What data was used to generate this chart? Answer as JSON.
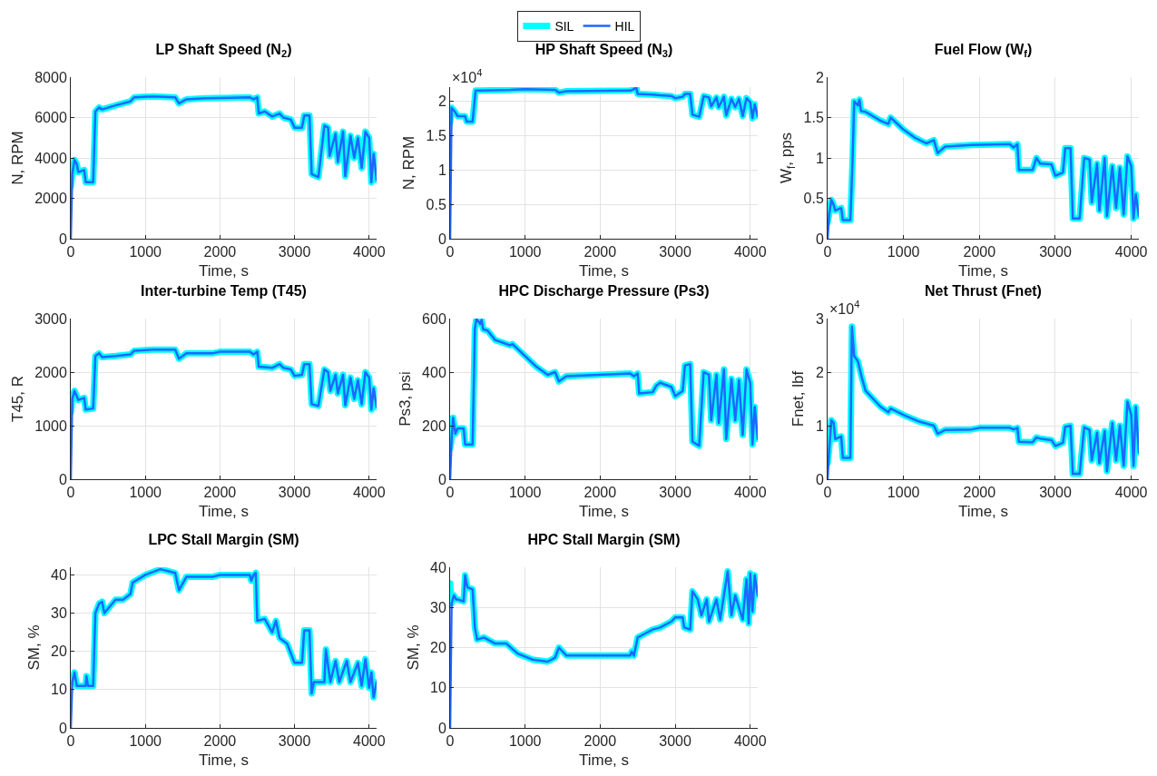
{
  "chart_data": [
    {
      "type": "line",
      "title": "LP Shaft Speed (N$_{2}$)",
      "xlabel": "Time, s",
      "ylabel": "N, RPM",
      "xlim": [
        0,
        4100
      ],
      "xticks": [
        0,
        1000,
        2000,
        3000,
        4000
      ],
      "ylim": [
        0,
        8000
      ],
      "yticks": [
        0,
        2000,
        4000,
        6000,
        8000
      ],
      "grid": true,
      "x": [
        0,
        20,
        50,
        80,
        100,
        180,
        200,
        300,
        330,
        380,
        420,
        600,
        800,
        850,
        1100,
        1400,
        1450,
        1550,
        1800,
        2400,
        2450,
        2500,
        2520,
        2600,
        2700,
        2800,
        2850,
        2950,
        3000,
        3100,
        3130,
        3200,
        3230,
        3320,
        3400,
        3450,
        3470,
        3550,
        3580,
        3650,
        3680,
        3750,
        3800,
        3850,
        3900,
        3950,
        4000,
        4030,
        4060,
        4080,
        4100
      ],
      "series": [
        {
          "color": "#00ffff",
          "values": [
            2600,
            3200,
            3900,
            3700,
            3300,
            3400,
            2800,
            2800,
            6300,
            6500,
            6400,
            6600,
            6800,
            7000,
            7050,
            7000,
            6700,
            6900,
            6950,
            7000,
            6900,
            7000,
            6200,
            6300,
            6050,
            6200,
            6000,
            5900,
            5500,
            5500,
            6100,
            6100,
            3200,
            3050,
            5600,
            5500,
            4100,
            5200,
            3800,
            5300,
            3100,
            5100,
            4000,
            5000,
            3500,
            5300,
            5000,
            2800,
            4200,
            3600,
            2900
          ]
        },
        {
          "color": "#1f66ff",
          "values": [
            0,
            3200,
            3900,
            3700,
            3300,
            3400,
            2800,
            2800,
            6300,
            6500,
            6400,
            6600,
            6800,
            7000,
            7050,
            7000,
            6700,
            6900,
            6950,
            7000,
            6900,
            7000,
            6200,
            6300,
            6050,
            6200,
            6000,
            5900,
            5500,
            5500,
            6100,
            6100,
            3200,
            3050,
            5600,
            5500,
            4100,
            5200,
            3800,
            5300,
            3100,
            5100,
            4000,
            5000,
            3500,
            5300,
            5000,
            2800,
            4200,
            3600,
            2900
          ]
        }
      ]
    },
    {
      "type": "line",
      "title": "HP Shaft Speed (N$_{3}$)",
      "xlabel": "Time, s",
      "ylabel": "N, RPM",
      "xlim": [
        0,
        4100
      ],
      "xticks": [
        0,
        1000,
        2000,
        3000,
        4000
      ],
      "ylim": [
        0,
        2.2
      ],
      "yticks": [
        0,
        0.5,
        1,
        1.5,
        2
      ],
      "grid": true,
      "annotations": [
        "×10$^{4}$"
      ],
      "legend": "top",
      "x": [
        0,
        20,
        60,
        100,
        200,
        220,
        300,
        340,
        400,
        800,
        1000,
        1400,
        1450,
        1550,
        2400,
        2450,
        2480,
        2500,
        2700,
        2800,
        2950,
        3000,
        3100,
        3130,
        3200,
        3230,
        3320,
        3380,
        3450,
        3480,
        3550,
        3580,
        3650,
        3680,
        3750,
        3800,
        3850,
        3900,
        3950,
        4000,
        4030,
        4060,
        4100
      ],
      "series": [
        {
          "name": "SIL",
          "color": "#00ffff",
          "values": [
            1.68,
            1.9,
            1.85,
            1.78,
            1.78,
            1.7,
            1.7,
            2.15,
            2.15,
            2.16,
            2.17,
            2.16,
            2.12,
            2.14,
            2.15,
            2.17,
            2.2,
            2.1,
            2.09,
            2.08,
            2.07,
            2.04,
            2.06,
            2.1,
            2.1,
            1.8,
            1.77,
            2.07,
            2.05,
            1.92,
            2.05,
            1.91,
            2.06,
            1.79,
            2.03,
            1.91,
            2.03,
            1.78,
            2.04,
            1.98,
            1.75,
            1.95,
            1.78
          ]
        },
        {
          "name": "HIL",
          "color": "#1f66ff",
          "values": [
            0,
            1.9,
            1.85,
            1.78,
            1.78,
            1.7,
            1.7,
            2.15,
            2.15,
            2.16,
            2.17,
            2.16,
            2.12,
            2.14,
            2.15,
            2.17,
            2.2,
            2.1,
            2.09,
            2.08,
            2.07,
            2.04,
            2.06,
            2.1,
            2.1,
            1.8,
            1.77,
            2.07,
            2.05,
            1.92,
            2.05,
            1.91,
            2.06,
            1.79,
            2.03,
            1.91,
            2.03,
            1.78,
            2.04,
            1.98,
            1.75,
            1.95,
            1.78
          ]
        }
      ]
    },
    {
      "type": "line",
      "title": "Fuel Flow (W$_{f}$)",
      "xlabel": "Time, s",
      "ylabel": "W$_{f}$, pps",
      "xlim": [
        0,
        4100
      ],
      "xticks": [
        0,
        1000,
        2000,
        3000,
        4000
      ],
      "ylim": [
        0,
        2
      ],
      "yticks": [
        0,
        0.5,
        1,
        1.5,
        2
      ],
      "grid": true,
      "x": [
        0,
        20,
        50,
        80,
        100,
        180,
        200,
        300,
        330,
        350,
        400,
        420,
        440,
        500,
        700,
        800,
        830,
        1000,
        1150,
        1300,
        1400,
        1450,
        1550,
        1900,
        2400,
        2450,
        2500,
        2520,
        2700,
        2750,
        2800,
        2950,
        3000,
        3100,
        3130,
        3200,
        3230,
        3320,
        3380,
        3450,
        3480,
        3550,
        3580,
        3650,
        3680,
        3750,
        3800,
        3850,
        3900,
        3950,
        4000,
        4030,
        4060,
        4100
      ],
      "series": [
        {
          "color": "#00ffff",
          "values": [
            0.2,
            0.3,
            0.48,
            0.42,
            0.35,
            0.38,
            0.23,
            0.23,
            1.0,
            1.7,
            1.65,
            1.72,
            1.58,
            1.57,
            1.46,
            1.42,
            1.5,
            1.35,
            1.25,
            1.18,
            1.22,
            1.06,
            1.14,
            1.16,
            1.17,
            1.13,
            1.17,
            0.85,
            0.85,
            1.0,
            0.93,
            0.92,
            0.78,
            0.82,
            1.12,
            1.12,
            0.25,
            0.25,
            1.0,
            0.98,
            0.45,
            0.93,
            0.35,
            1.0,
            0.28,
            0.9,
            0.38,
            0.88,
            0.3,
            1.02,
            0.9,
            0.25,
            0.55,
            0.28
          ]
        },
        {
          "color": "#1f66ff",
          "values": [
            0,
            0.3,
            0.48,
            0.42,
            0.35,
            0.38,
            0.23,
            0.23,
            1.0,
            1.7,
            1.65,
            1.72,
            1.58,
            1.57,
            1.46,
            1.42,
            1.5,
            1.35,
            1.25,
            1.18,
            1.22,
            1.06,
            1.14,
            1.16,
            1.17,
            1.13,
            1.17,
            0.85,
            0.85,
            1.0,
            0.93,
            0.92,
            0.78,
            0.82,
            1.12,
            1.12,
            0.25,
            0.25,
            1.0,
            0.98,
            0.45,
            0.93,
            0.35,
            1.0,
            0.28,
            0.9,
            0.38,
            0.88,
            0.3,
            1.02,
            0.9,
            0.25,
            0.55,
            0.28
          ]
        }
      ]
    },
    {
      "type": "line",
      "title": "Inter-turbine Temp (T45)",
      "xlabel": "Time, s",
      "ylabel": "T45, R",
      "xlim": [
        0,
        4100
      ],
      "xticks": [
        0,
        1000,
        2000,
        3000,
        4000
      ],
      "ylim": [
        0,
        3000
      ],
      "yticks": [
        0,
        1000,
        2000,
        3000
      ],
      "grid": true,
      "x": [
        0,
        20,
        50,
        80,
        100,
        180,
        200,
        300,
        330,
        380,
        420,
        600,
        800,
        850,
        1100,
        1400,
        1450,
        1550,
        1900,
        2000,
        2400,
        2450,
        2500,
        2520,
        2700,
        2800,
        2850,
        2950,
        3000,
        3100,
        3130,
        3200,
        3230,
        3320,
        3400,
        3450,
        3480,
        3550,
        3580,
        3650,
        3680,
        3750,
        3800,
        3850,
        3900,
        3950,
        4000,
        4030,
        4060,
        4100
      ],
      "series": [
        {
          "color": "#00ffff",
          "values": [
            1250,
            1500,
            1650,
            1550,
            1480,
            1520,
            1300,
            1320,
            2300,
            2350,
            2280,
            2300,
            2330,
            2400,
            2420,
            2420,
            2250,
            2350,
            2350,
            2380,
            2380,
            2330,
            2380,
            2100,
            2080,
            2150,
            2080,
            2050,
            1930,
            1950,
            2150,
            2150,
            1400,
            1370,
            2050,
            2000,
            1650,
            1950,
            1600,
            1950,
            1380,
            1900,
            1500,
            1850,
            1400,
            2000,
            1900,
            1300,
            1700,
            1350
          ]
        },
        {
          "color": "#1f66ff",
          "values": [
            0,
            1500,
            1650,
            1550,
            1480,
            1520,
            1300,
            1320,
            2300,
            2350,
            2280,
            2300,
            2330,
            2400,
            2420,
            2420,
            2250,
            2350,
            2350,
            2380,
            2380,
            2330,
            2380,
            2100,
            2080,
            2150,
            2080,
            2050,
            1930,
            1950,
            2150,
            2150,
            1400,
            1370,
            2050,
            2000,
            1650,
            1950,
            1600,
            1950,
            1380,
            1900,
            1500,
            1850,
            1400,
            2000,
            1900,
            1300,
            1700,
            1350
          ]
        }
      ]
    },
    {
      "type": "line",
      "title": "HPC Discharge Pressure (Ps3)",
      "xlabel": "Time, s",
      "ylabel": "Ps3, psi",
      "xlim": [
        0,
        4100
      ],
      "xticks": [
        0,
        1000,
        2000,
        3000,
        4000
      ],
      "ylim": [
        0,
        600
      ],
      "yticks": [
        0,
        200,
        400,
        600
      ],
      "grid": true,
      "x": [
        0,
        20,
        40,
        70,
        100,
        180,
        200,
        300,
        330,
        350,
        400,
        420,
        440,
        500,
        600,
        700,
        800,
        830,
        1000,
        1150,
        1300,
        1400,
        1450,
        1550,
        2400,
        2450,
        2500,
        2520,
        2700,
        2750,
        2800,
        2950,
        3000,
        3100,
        3130,
        3200,
        3230,
        3320,
        3380,
        3450,
        3480,
        3550,
        3580,
        3650,
        3680,
        3750,
        3800,
        3850,
        3900,
        3950,
        4000,
        4030,
        4060,
        4100
      ],
      "series": [
        {
          "color": "#00ffff",
          "values": [
            115,
            150,
            230,
            170,
            190,
            190,
            130,
            130,
            560,
            600,
            580,
            595,
            560,
            555,
            520,
            510,
            500,
            505,
            460,
            420,
            390,
            400,
            365,
            385,
            395,
            385,
            395,
            320,
            325,
            350,
            360,
            345,
            310,
            330,
            425,
            430,
            140,
            125,
            400,
            390,
            220,
            390,
            210,
            410,
            150,
            375,
            220,
            370,
            165,
            410,
            360,
            130,
            270,
            150
          ]
        },
        {
          "color": "#1f66ff",
          "values": [
            0,
            150,
            230,
            170,
            190,
            190,
            130,
            130,
            560,
            600,
            580,
            595,
            560,
            555,
            520,
            510,
            500,
            505,
            460,
            420,
            390,
            400,
            365,
            385,
            395,
            385,
            395,
            320,
            325,
            350,
            360,
            345,
            310,
            330,
            425,
            430,
            140,
            125,
            400,
            390,
            220,
            390,
            210,
            410,
            150,
            375,
            220,
            370,
            165,
            410,
            360,
            130,
            270,
            150
          ]
        }
      ]
    },
    {
      "type": "line",
      "title": "Net Thrust (Fnet)",
      "xlabel": "Time, s",
      "ylabel": "Fnet, lbf",
      "xlim": [
        0,
        4100
      ],
      "xticks": [
        0,
        1000,
        2000,
        3000,
        4000
      ],
      "ylim": [
        0,
        3
      ],
      "yticks": [
        0,
        1,
        2,
        3
      ],
      "grid": true,
      "annotations": [
        "×10$^{4}$"
      ],
      "x": [
        0,
        20,
        50,
        80,
        100,
        180,
        200,
        300,
        320,
        350,
        400,
        450,
        500,
        600,
        700,
        800,
        830,
        1000,
        1200,
        1400,
        1450,
        1550,
        1900,
        2000,
        2400,
        2450,
        2500,
        2520,
        2700,
        2750,
        2800,
        2950,
        3000,
        3100,
        3130,
        3200,
        3230,
        3320,
        3380,
        3450,
        3480,
        3550,
        3580,
        3650,
        3680,
        3750,
        3800,
        3850,
        3900,
        3950,
        4000,
        4030,
        4060,
        4100
      ],
      "series": [
        {
          "color": "#00ffff",
          "values": [
            0.3,
            0.55,
            1.1,
            1.05,
            0.75,
            0.8,
            0.4,
            0.4,
            2.85,
            2.3,
            2.2,
            1.9,
            1.65,
            1.5,
            1.35,
            1.25,
            1.32,
            1.2,
            1.08,
            1.0,
            0.85,
            0.92,
            0.93,
            0.96,
            0.96,
            0.93,
            0.96,
            0.7,
            0.69,
            0.78,
            0.76,
            0.73,
            0.62,
            0.68,
            0.98,
            1.0,
            0.1,
            0.1,
            0.97,
            0.92,
            0.35,
            0.87,
            0.3,
            0.9,
            0.15,
            1.05,
            0.35,
            1.0,
            0.25,
            1.45,
            1.2,
            0.25,
            1.35,
            0.5
          ]
        },
        {
          "color": "#1f66ff",
          "values": [
            0,
            0.55,
            1.1,
            1.05,
            0.75,
            0.8,
            0.4,
            0.4,
            2.85,
            2.3,
            2.2,
            1.9,
            1.65,
            1.5,
            1.35,
            1.25,
            1.32,
            1.2,
            1.08,
            1.0,
            0.85,
            0.92,
            0.93,
            0.96,
            0.96,
            0.93,
            0.96,
            0.7,
            0.69,
            0.78,
            0.76,
            0.73,
            0.62,
            0.68,
            0.98,
            1.0,
            0.1,
            0.1,
            0.97,
            0.92,
            0.35,
            0.87,
            0.3,
            0.9,
            0.15,
            1.05,
            0.35,
            1.0,
            0.25,
            1.45,
            1.2,
            0.25,
            1.35,
            0.5
          ]
        }
      ]
    },
    {
      "type": "line",
      "title": "LPC Stall Margin (SM)",
      "xlabel": "Time, s",
      "ylabel": "SM, %",
      "xlim": [
        0,
        4100
      ],
      "xticks": [
        0,
        1000,
        2000,
        3000,
        4000
      ],
      "ylim": [
        0,
        42
      ],
      "yticks": [
        0,
        10,
        20,
        30,
        40
      ],
      "grid": true,
      "x": [
        0,
        20,
        50,
        80,
        200,
        210,
        230,
        300,
        330,
        380,
        420,
        450,
        600,
        700,
        800,
        830,
        1000,
        1200,
        1400,
        1450,
        1550,
        1900,
        2000,
        2400,
        2420,
        2450,
        2480,
        2500,
        2600,
        2700,
        2750,
        2800,
        2900,
        3000,
        3100,
        3130,
        3200,
        3230,
        3260,
        3400,
        3420,
        3480,
        3550,
        3600,
        3700,
        3750,
        3850,
        3900,
        3950,
        4000,
        4030,
        4060,
        4100
      ],
      "series": [
        {
          "color": "#00ffff",
          "values": [
            12.5,
            12,
            14.5,
            11,
            11,
            13.5,
            11,
            11,
            30,
            32.5,
            33,
            30,
            33.5,
            33.5,
            35,
            38,
            40,
            41.5,
            40.5,
            36,
            39.5,
            39.5,
            40,
            40,
            38.5,
            40,
            40.5,
            28,
            28.5,
            25,
            28,
            23.5,
            22,
            17,
            17,
            25.5,
            25.5,
            9,
            12,
            12,
            20.5,
            12,
            17.5,
            12,
            17.5,
            12,
            17,
            11,
            18,
            10.5,
            14.5,
            8,
            12
          ]
        },
        {
          "color": "#1f66ff",
          "values": [
            0,
            12,
            14.5,
            11,
            11,
            13.5,
            11,
            11,
            30,
            32.5,
            33,
            30,
            33.5,
            33.5,
            35,
            38,
            40,
            41.5,
            40.5,
            36,
            39.5,
            39.5,
            40,
            40,
            38.5,
            40,
            40.5,
            28,
            28.5,
            25,
            28,
            23.5,
            22,
            17,
            17,
            25.5,
            25.5,
            9,
            12,
            12,
            20.5,
            12,
            17.5,
            12,
            17.5,
            12,
            17,
            11,
            18,
            10.5,
            14.5,
            8,
            12
          ]
        }
      ]
    },
    {
      "type": "line",
      "title": "HPC Stall Margin (SM)",
      "xlabel": "Time, s",
      "ylabel": "SM, %",
      "xlim": [
        0,
        4100
      ],
      "xticks": [
        0,
        1000,
        2000,
        3000,
        4000
      ],
      "ylim": [
        0,
        40
      ],
      "yticks": [
        0,
        10,
        20,
        30,
        40
      ],
      "grid": true,
      "x": [
        0,
        20,
        50,
        80,
        100,
        180,
        200,
        230,
        300,
        330,
        360,
        450,
        600,
        750,
        900,
        1100,
        1300,
        1400,
        1450,
        1550,
        2000,
        2400,
        2420,
        2450,
        2500,
        2600,
        2700,
        2800,
        2950,
        3000,
        3100,
        3120,
        3200,
        3230,
        3300,
        3350,
        3420,
        3450,
        3550,
        3600,
        3700,
        3750,
        3800,
        3900,
        3950,
        3980,
        4000,
        4030,
        4060,
        4100
      ],
      "series": [
        {
          "color": "#00ffff",
          "values": [
            36,
            31,
            33,
            32,
            32,
            31.5,
            38,
            35,
            34.5,
            25,
            22,
            22.5,
            21,
            21,
            18.5,
            17,
            16.5,
            17.5,
            20,
            18,
            18,
            18,
            19,
            18,
            22.5,
            23.5,
            24.5,
            25,
            26.5,
            27.5,
            27.5,
            25,
            24.5,
            34,
            32,
            28,
            32,
            26.5,
            32,
            27,
            39,
            28,
            33,
            27,
            37,
            26,
            38.5,
            29,
            38,
            33
          ]
        },
        {
          "color": "#1f66ff",
          "values": [
            0,
            31,
            33,
            32,
            32,
            31.5,
            38,
            35,
            34.5,
            25,
            22,
            22.5,
            21,
            21,
            18.5,
            17,
            16.5,
            17.5,
            20,
            18,
            18,
            18,
            19,
            18,
            22.5,
            23.5,
            24.5,
            25,
            26.5,
            27.5,
            27.5,
            25,
            24.5,
            34,
            32,
            28,
            32,
            26.5,
            32,
            27,
            39,
            28,
            33,
            27,
            37,
            26,
            38.5,
            29,
            38,
            33
          ]
        }
      ]
    }
  ]
}
